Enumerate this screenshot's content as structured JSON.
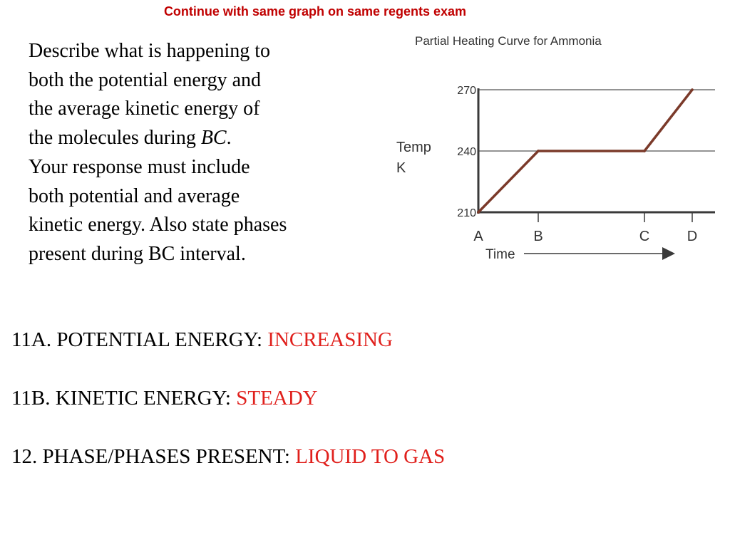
{
  "header": {
    "note": "Continue with same graph on same regents exam"
  },
  "question": {
    "lines": [
      "Describe what is happening to",
      "both the potential energy and",
      "the average kinetic energy of",
      "the molecules during ",
      "Your response must include",
      "both potential and average",
      "kinetic energy.  Also state phases",
      "present during BC interval."
    ],
    "segment": "BC",
    "segment_period": "."
  },
  "answers": [
    {
      "label": "11A.  POTENTIAL ENERGY: ",
      "value": "INCREASING"
    },
    {
      "label": "11B.  KINETIC ENERGY: ",
      "value": "STEADY"
    },
    {
      "label": "12. PHASE/PHASES PRESENT:  ",
      "value": "LIQUID TO GAS"
    }
  ],
  "colors": {
    "header": "#c00000",
    "answer_value": "#e0201c",
    "curve": "#7b3a2a"
  },
  "chart_data": {
    "type": "line",
    "title": "Partial Heating Curve for Ammonia",
    "ylabel": "Temp K",
    "xlabel": "Time",
    "x_ticks": [
      "A",
      "B",
      "C",
      "D"
    ],
    "y_ticks": [
      210,
      240,
      270
    ],
    "ylim": [
      210,
      270
    ],
    "gridlines": [
      240,
      270
    ],
    "series": [
      {
        "points": [
          {
            "x": "A",
            "y": 210
          },
          {
            "x": "B",
            "y": 240
          },
          {
            "x": "C",
            "y": 240
          },
          {
            "x": "D",
            "y": 270
          }
        ]
      }
    ]
  }
}
